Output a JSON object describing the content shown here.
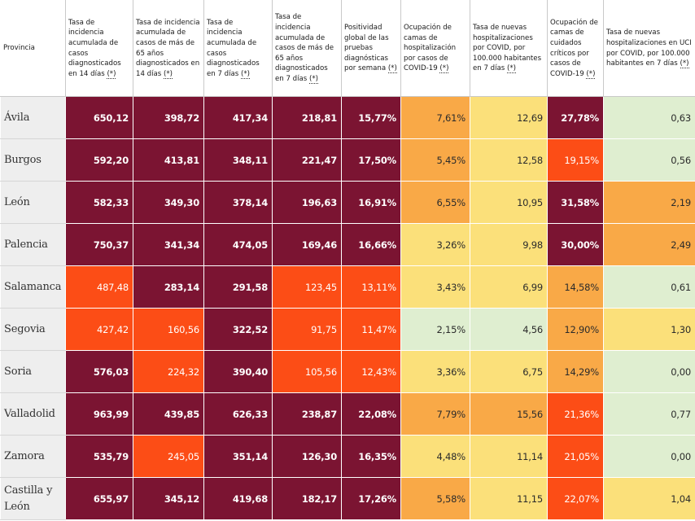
{
  "colors": {
    "dm": "#7b1432",
    "r": "#fc4d16",
    "o": "#f9a947",
    "y": "#fbe07a",
    "g": "#dfeed0"
  },
  "table": {
    "headers": [
      "Provincia",
      "Tasa de incidencia acumulada de casos diagnosticados en 14 días",
      "Tasa de incidencia acumulada de casos de más de 65 años diagnosticados en 14 días",
      "Tasa de incidencia acumulada de casos diagnosticados en 7 días",
      "Tasa de incidencia acumulada de casos de más de 65 años diagnosticados en 7 días",
      "Positividad global de las pruebas diagnósticas por semana",
      "Ocupación de camas de hospitalización por casos de COVID-19",
      "Tasa de nuevas hospitalizaciones por COVID, por 100.000 habitantes en 7 días",
      "Ocupación de camas de cuidados críticos por casos de COVID-19",
      "Tasa de nuevas hospitalizaciones en UCI por COVID, por 100.000 habitantes en 7 días"
    ],
    "asterisk": "(*)",
    "rows": [
      {
        "province": "Ávila",
        "cells": [
          {
            "v": "650,12",
            "c": "dm"
          },
          {
            "v": "398,72",
            "c": "dm"
          },
          {
            "v": "417,34",
            "c": "dm"
          },
          {
            "v": "218,81",
            "c": "dm"
          },
          {
            "v": "15,77%",
            "c": "dm"
          },
          {
            "v": "7,61%",
            "c": "o"
          },
          {
            "v": "12,69",
            "c": "y"
          },
          {
            "v": "27,78%",
            "c": "dm"
          },
          {
            "v": "0,63",
            "c": "g"
          }
        ]
      },
      {
        "province": "Burgos",
        "cells": [
          {
            "v": "592,20",
            "c": "dm"
          },
          {
            "v": "413,81",
            "c": "dm"
          },
          {
            "v": "348,11",
            "c": "dm"
          },
          {
            "v": "221,47",
            "c": "dm"
          },
          {
            "v": "17,50%",
            "c": "dm"
          },
          {
            "v": "5,45%",
            "c": "o"
          },
          {
            "v": "12,58",
            "c": "y"
          },
          {
            "v": "19,15%",
            "c": "r"
          },
          {
            "v": "0,56",
            "c": "g"
          }
        ]
      },
      {
        "province": "León",
        "cells": [
          {
            "v": "582,33",
            "c": "dm"
          },
          {
            "v": "349,30",
            "c": "dm"
          },
          {
            "v": "378,14",
            "c": "dm"
          },
          {
            "v": "196,63",
            "c": "dm"
          },
          {
            "v": "16,91%",
            "c": "dm"
          },
          {
            "v": "6,55%",
            "c": "o"
          },
          {
            "v": "10,95",
            "c": "y"
          },
          {
            "v": "31,58%",
            "c": "dm"
          },
          {
            "v": "2,19",
            "c": "o"
          }
        ]
      },
      {
        "province": "Palencia",
        "cells": [
          {
            "v": "750,37",
            "c": "dm"
          },
          {
            "v": "341,34",
            "c": "dm"
          },
          {
            "v": "474,05",
            "c": "dm"
          },
          {
            "v": "169,46",
            "c": "dm"
          },
          {
            "v": "16,66%",
            "c": "dm"
          },
          {
            "v": "3,26%",
            "c": "y"
          },
          {
            "v": "9,98",
            "c": "y"
          },
          {
            "v": "30,00%",
            "c": "dm"
          },
          {
            "v": "2,49",
            "c": "o"
          }
        ]
      },
      {
        "province": "Salamanca",
        "cells": [
          {
            "v": "487,48",
            "c": "r"
          },
          {
            "v": "283,14",
            "c": "dm"
          },
          {
            "v": "291,58",
            "c": "dm"
          },
          {
            "v": "123,45",
            "c": "r"
          },
          {
            "v": "13,11%",
            "c": "r"
          },
          {
            "v": "3,43%",
            "c": "y"
          },
          {
            "v": "6,99",
            "c": "y"
          },
          {
            "v": "14,58%",
            "c": "o"
          },
          {
            "v": "0,61",
            "c": "g"
          }
        ]
      },
      {
        "province": "Segovia",
        "cells": [
          {
            "v": "427,42",
            "c": "r"
          },
          {
            "v": "160,56",
            "c": "r"
          },
          {
            "v": "322,52",
            "c": "dm"
          },
          {
            "v": "91,75",
            "c": "r"
          },
          {
            "v": "11,47%",
            "c": "r"
          },
          {
            "v": "2,15%",
            "c": "g"
          },
          {
            "v": "4,56",
            "c": "g"
          },
          {
            "v": "12,90%",
            "c": "o"
          },
          {
            "v": "1,30",
            "c": "y"
          }
        ]
      },
      {
        "province": "Soria",
        "cells": [
          {
            "v": "576,03",
            "c": "dm"
          },
          {
            "v": "224,32",
            "c": "r"
          },
          {
            "v": "390,40",
            "c": "dm"
          },
          {
            "v": "105,56",
            "c": "r"
          },
          {
            "v": "12,43%",
            "c": "r"
          },
          {
            "v": "3,36%",
            "c": "y"
          },
          {
            "v": "6,75",
            "c": "y"
          },
          {
            "v": "14,29%",
            "c": "o"
          },
          {
            "v": "0,00",
            "c": "g"
          }
        ]
      },
      {
        "province": "Valladolid",
        "cells": [
          {
            "v": "963,99",
            "c": "dm"
          },
          {
            "v": "439,85",
            "c": "dm"
          },
          {
            "v": "626,33",
            "c": "dm"
          },
          {
            "v": "238,87",
            "c": "dm"
          },
          {
            "v": "22,08%",
            "c": "dm"
          },
          {
            "v": "7,79%",
            "c": "o"
          },
          {
            "v": "15,56",
            "c": "o"
          },
          {
            "v": "21,36%",
            "c": "r"
          },
          {
            "v": "0,77",
            "c": "g"
          }
        ]
      },
      {
        "province": "Zamora",
        "cells": [
          {
            "v": "535,79",
            "c": "dm"
          },
          {
            "v": "245,05",
            "c": "r"
          },
          {
            "v": "351,14",
            "c": "dm"
          },
          {
            "v": "126,30",
            "c": "dm"
          },
          {
            "v": "16,35%",
            "c": "dm"
          },
          {
            "v": "4,48%",
            "c": "y"
          },
          {
            "v": "11,14",
            "c": "y"
          },
          {
            "v": "21,05%",
            "c": "r"
          },
          {
            "v": "0,00",
            "c": "g"
          }
        ]
      },
      {
        "province": "Castilla y León",
        "cells": [
          {
            "v": "655,97",
            "c": "dm"
          },
          {
            "v": "345,12",
            "c": "dm"
          },
          {
            "v": "419,68",
            "c": "dm"
          },
          {
            "v": "182,17",
            "c": "dm"
          },
          {
            "v": "17,26%",
            "c": "dm"
          },
          {
            "v": "5,58%",
            "c": "o"
          },
          {
            "v": "11,15",
            "c": "y"
          },
          {
            "v": "22,07%",
            "c": "r"
          },
          {
            "v": "1,04",
            "c": "y"
          }
        ]
      }
    ]
  }
}
